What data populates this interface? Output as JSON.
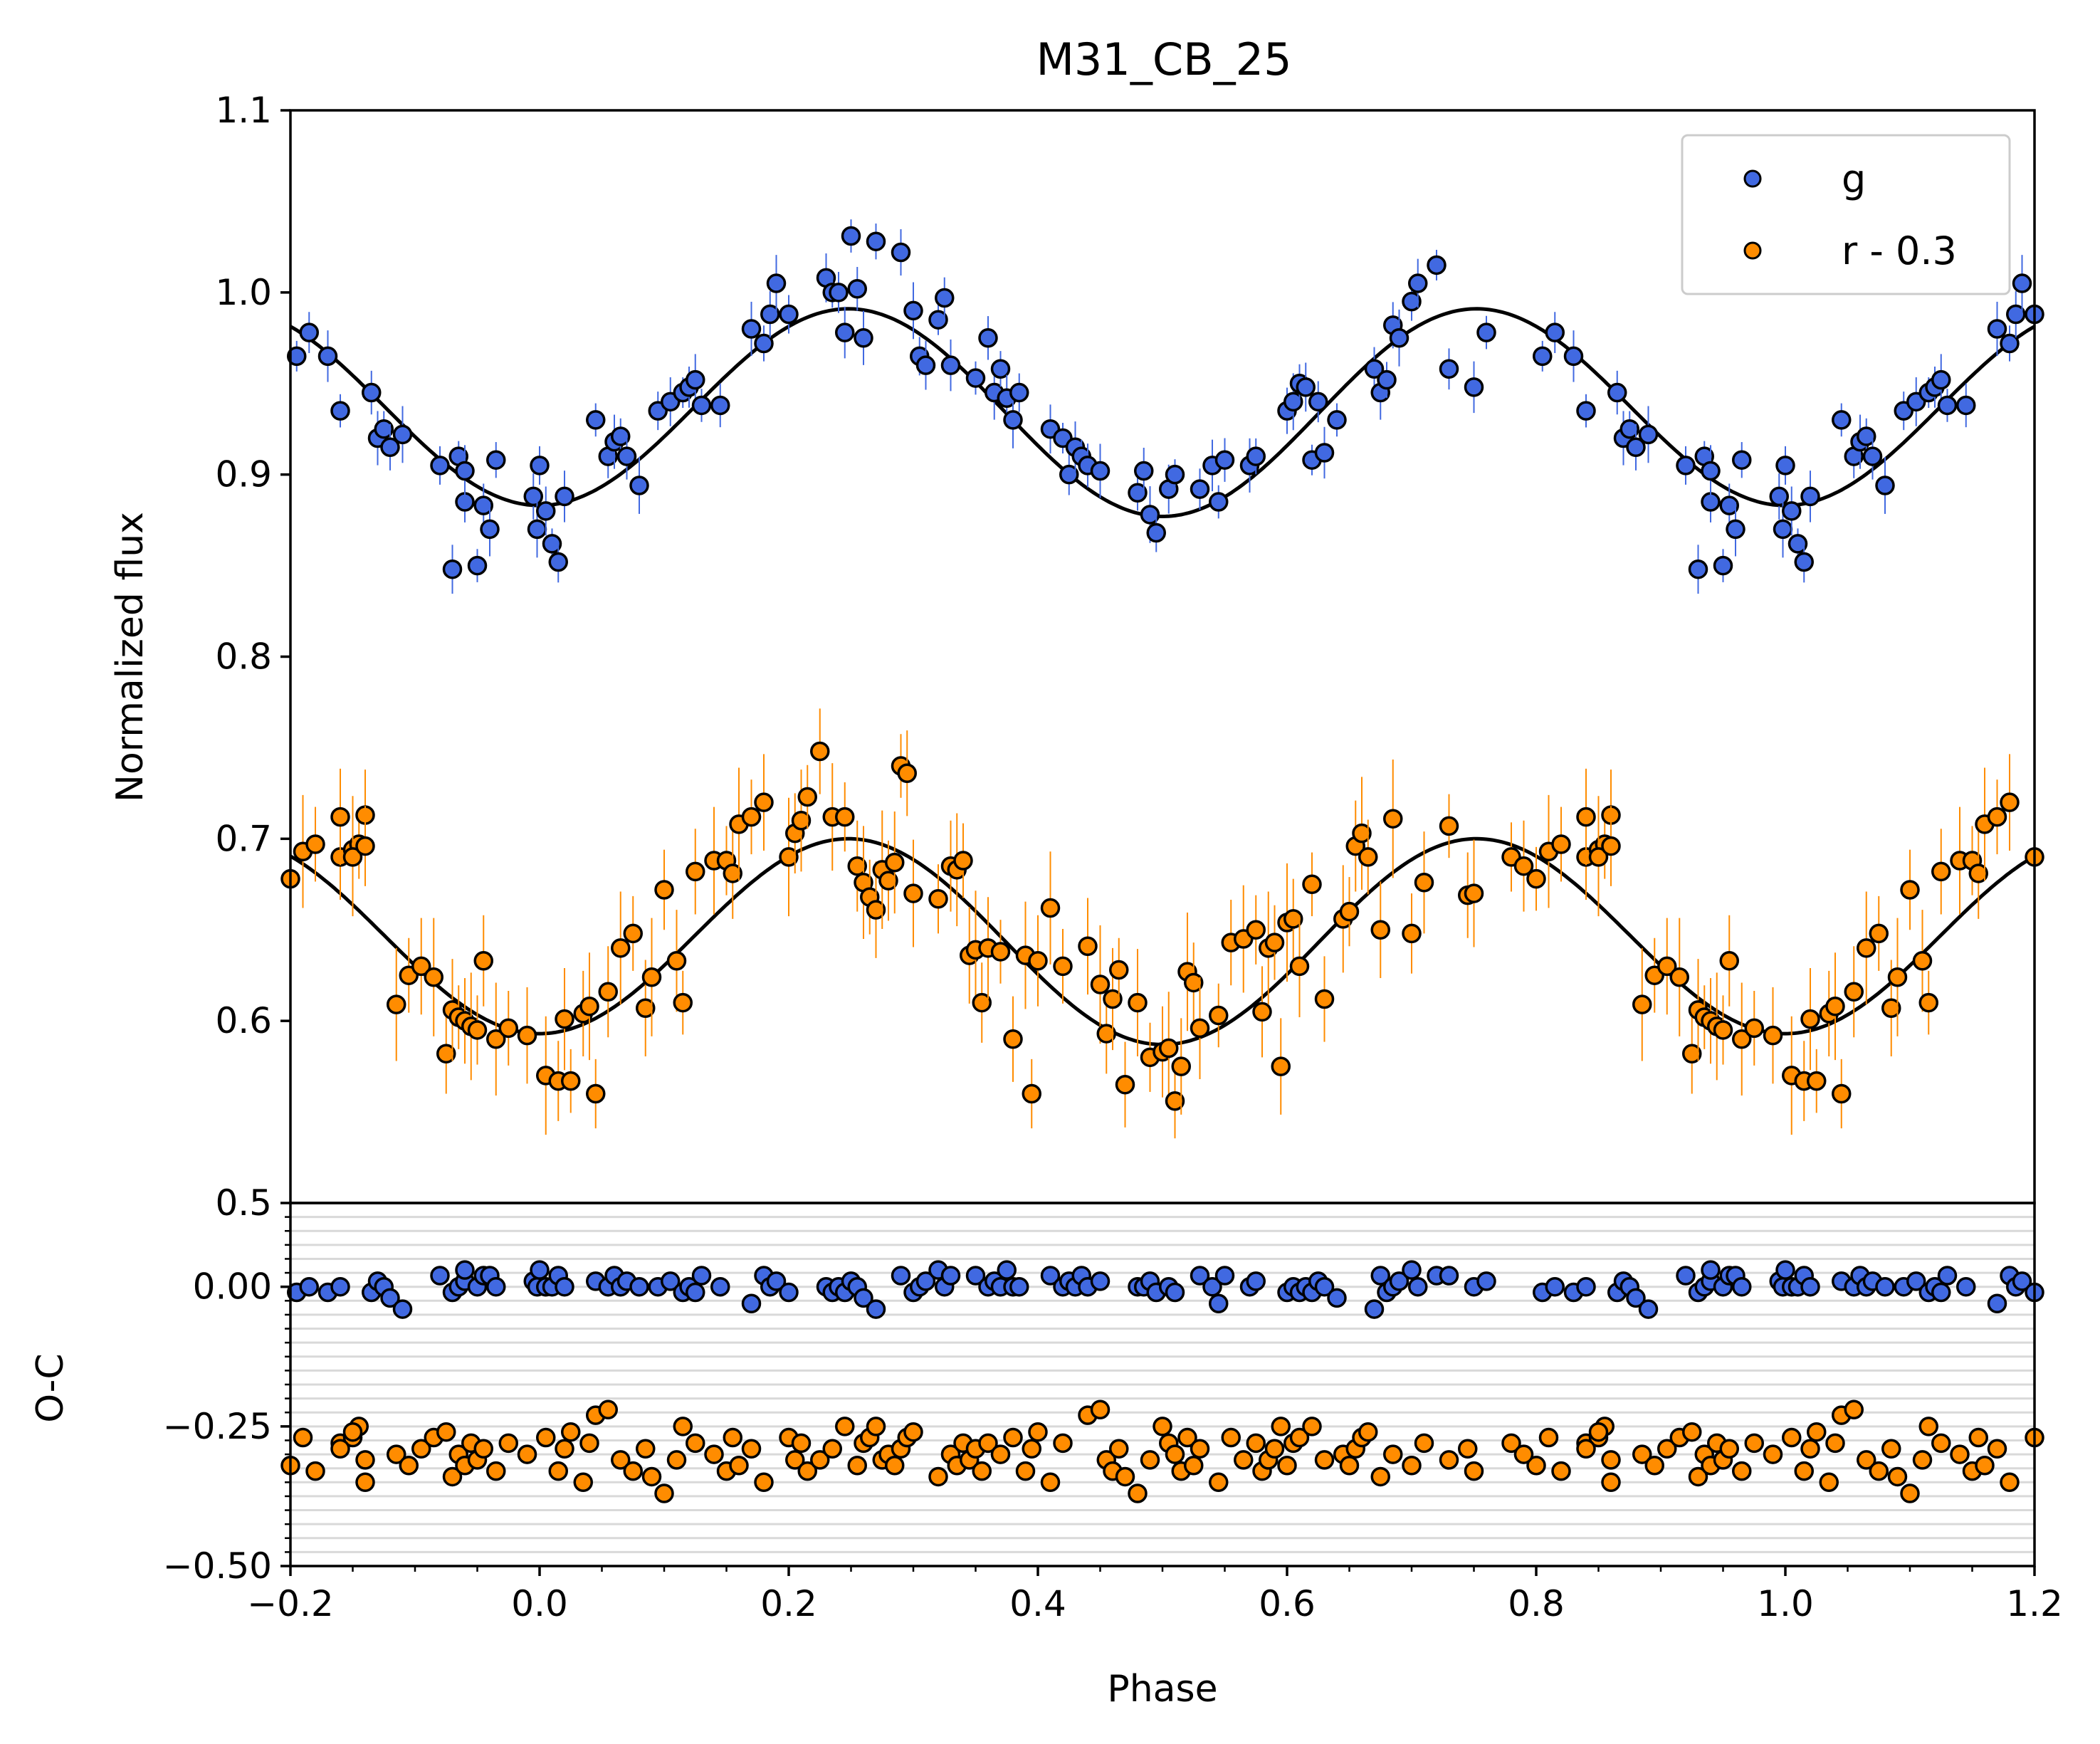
{
  "chart_data": [
    {
      "type": "scatter",
      "panel": "light-curve",
      "title": "M31_CB_25",
      "xlabel": "",
      "ylabel": "Normalized flux",
      "xlim": [
        -0.2,
        1.2
      ],
      "ylim": [
        0.5,
        1.1
      ],
      "xticks": [
        "",
        "",
        "",
        "",
        "",
        "",
        "",
        ""
      ],
      "yticks": [
        "0.5",
        "0.6",
        "0.7",
        "0.8",
        "0.9",
        "1.0",
        "1.1"
      ],
      "legend_position": "top-right",
      "grid": false,
      "series": [
        {
          "name": "g",
          "color": "#4169e1",
          "x": [
            -0.195,
            -0.185,
            -0.17,
            -0.16,
            -0.135,
            -0.13,
            -0.125,
            -0.12,
            -0.11,
            -0.08,
            -0.07,
            -0.065,
            -0.06,
            -0.06,
            -0.05,
            -0.045,
            -0.04,
            -0.035,
            -0.005,
            -0.002,
            0.0,
            0.005,
            0.01,
            0.015,
            0.02,
            0.045,
            0.055,
            0.06,
            0.065,
            0.07,
            0.08,
            0.095,
            0.105,
            0.115,
            0.12,
            0.125,
            0.13,
            0.145,
            0.17,
            0.18,
            0.185,
            0.19,
            0.2,
            0.23,
            0.235,
            0.24,
            0.245,
            0.25,
            0.255,
            0.26,
            0.27,
            0.29,
            0.3,
            0.305,
            0.31,
            0.32,
            0.325,
            0.33,
            0.35,
            0.36,
            0.365,
            0.37,
            0.375,
            0.38,
            0.385,
            0.41,
            0.42,
            0.425,
            0.43,
            0.435,
            0.44,
            0.45,
            0.48,
            0.485,
            0.49,
            0.495,
            0.505,
            0.51,
            0.53,
            0.54,
            0.545,
            0.55,
            0.57,
            0.575,
            0.6,
            0.605,
            0.61,
            0.615,
            0.62,
            0.625,
            0.63,
            0.64,
            0.67,
            0.675,
            0.68,
            0.685,
            0.69,
            0.7,
            0.705,
            0.72,
            0.73,
            0.75,
            0.76
          ],
          "values": [
            0.965,
            0.978,
            0.965,
            0.935,
            0.945,
            0.92,
            0.925,
            0.915,
            0.922,
            0.905,
            0.848,
            0.91,
            0.885,
            0.902,
            0.85,
            0.883,
            0.87,
            0.908,
            0.888,
            0.87,
            0.905,
            0.88,
            0.862,
            0.852,
            0.888,
            0.93,
            0.91,
            0.918,
            0.921,
            0.91,
            0.894,
            0.935,
            0.94,
            0.945,
            0.948,
            0.952,
            0.938,
            0.938,
            0.98,
            0.972,
            0.988,
            1.005,
            0.988,
            1.008,
            1.0,
            1.0,
            0.978,
            1.031,
            1.002,
            0.975,
            1.028,
            1.022,
            0.99,
            0.965,
            0.96,
            0.985,
            0.997,
            0.96,
            0.953,
            0.975,
            0.945,
            0.958,
            0.942,
            0.93,
            0.945,
            0.925,
            0.92,
            0.9,
            0.915,
            0.91,
            0.905,
            0.902,
            0.89,
            0.902,
            0.878,
            0.868,
            0.892,
            0.9,
            0.892,
            0.905,
            0.885,
            0.908,
            0.905,
            0.91,
            0.935,
            0.94,
            0.95,
            0.948,
            0.908,
            0.94,
            0.912,
            0.93,
            0.958,
            0.945,
            0.952,
            0.982,
            0.975,
            0.995,
            1.005,
            1.015,
            0.958,
            0.948,
            0.978
          ]
        },
        {
          "name": "r - 0.3",
          "color": "#ff8c00",
          "x": [
            -0.2,
            -0.16,
            -0.15,
            -0.145,
            -0.14,
            -0.115,
            -0.105,
            -0.095,
            -0.085,
            -0.075,
            -0.07,
            -0.065,
            -0.06,
            -0.055,
            -0.05,
            -0.045,
            -0.035,
            -0.025,
            -0.01,
            0.005,
            0.015,
            0.02,
            0.025,
            0.035,
            0.04,
            0.045,
            0.055,
            0.065,
            0.075,
            0.085,
            0.09,
            0.1,
            0.11,
            0.115,
            0.125,
            0.14,
            0.15,
            0.155,
            0.16,
            0.17,
            0.18,
            0.2,
            0.205,
            0.21,
            0.215,
            0.225,
            0.235,
            0.245,
            0.255,
            0.26,
            0.265,
            0.27,
            0.275,
            0.28,
            0.285,
            0.29,
            0.295,
            0.3,
            0.32,
            0.33,
            0.335,
            0.34,
            0.345,
            0.35,
            0.355,
            0.36,
            0.37,
            0.38,
            0.39,
            0.395,
            0.4,
            0.41,
            0.42,
            0.44,
            0.45,
            0.455,
            0.46,
            0.465,
            0.47,
            0.48,
            0.49,
            0.5,
            0.505,
            0.51,
            0.515,
            0.52,
            0.525,
            0.53,
            0.545,
            0.555,
            0.565,
            0.575,
            0.58,
            0.585,
            0.59,
            0.595,
            0.6,
            0.605,
            0.61,
            0.62,
            0.63,
            0.645,
            0.65,
            0.655,
            0.66,
            0.665,
            0.675,
            0.685,
            0.7,
            0.71,
            0.73,
            0.745,
            0.75,
            0.78,
            0.79,
            0.81,
            0.82,
            0.84,
            0.85,
            0.86
          ],
          "values": [
            0.678,
            0.69,
            0.694,
            0.697,
            0.713,
            0.609,
            0.625,
            0.63,
            0.624,
            0.582,
            0.606,
            0.602,
            0.6,
            0.597,
            0.595,
            0.633,
            0.59,
            0.596,
            0.592,
            0.57,
            0.567,
            0.601,
            0.567,
            0.604,
            0.608,
            0.56,
            0.616,
            0.64,
            0.648,
            0.607,
            0.624,
            0.672,
            0.633,
            0.61,
            0.682,
            0.688,
            0.688,
            0.681,
            0.708,
            0.712,
            0.72,
            0.69,
            0.703,
            0.71,
            0.723,
            0.748,
            0.712,
            0.712,
            0.685,
            0.676,
            0.668,
            0.661,
            0.683,
            0.677,
            0.687,
            0.74,
            0.736,
            0.67,
            0.667,
            0.685,
            0.683,
            0.688,
            0.636,
            0.639,
            0.61,
            0.64,
            0.638,
            0.59,
            0.636,
            0.56,
            0.633,
            0.662,
            0.63,
            0.641,
            0.62,
            0.593,
            0.612,
            0.628,
            0.565,
            0.61,
            0.58,
            0.583,
            0.585,
            0.556,
            0.575,
            0.627,
            0.621,
            0.596,
            0.603,
            0.643,
            0.645,
            0.65,
            0.605,
            0.64,
            0.643,
            0.575,
            0.654,
            0.656,
            0.63,
            0.675,
            0.612,
            0.656,
            0.66,
            0.696,
            0.703,
            0.69,
            0.65,
            0.711,
            0.648,
            0.676,
            0.707,
            0.669,
            0.67,
            0.69,
            0.685,
            0.693,
            0.697,
            0.712,
            0.69,
            0.696
          ]
        }
      ],
      "model_curves": [
        {
          "name": "",
          "color": "#000000",
          "mean": 0.9355,
          "amplitude": 0.0555,
          "note": "sinusoidal fit, minima at phase 0 and 0.5"
        },
        {
          "name": "",
          "color": "#000000",
          "mean": 0.645,
          "amplitude": 0.055,
          "note": "sinusoidal fit, minima at phase 0 and 0.5"
        }
      ]
    },
    {
      "type": "scatter",
      "panel": "residuals",
      "title": "",
      "xlabel": "Phase",
      "ylabel": "O-C",
      "xlim": [
        -0.2,
        1.2
      ],
      "ylim": [
        -0.5,
        0.15
      ],
      "xticks": [
        "−0.2",
        "0.0",
        "0.2",
        "0.4",
        "0.6",
        "0.8",
        "1.0",
        "1.2"
      ],
      "yticks": [
        "−0.50",
        "−0.25",
        "0.00"
      ],
      "grid": true,
      "series": [
        {
          "name": "g",
          "color": "#4169e1",
          "note": "residuals centered at 0.00, scatter about ±0.04",
          "values": [
            -0.01,
            0.0,
            -0.01,
            0.0,
            -0.01,
            0.01,
            0.0,
            -0.02,
            -0.04,
            0.02,
            -0.01,
            0.0,
            0.01,
            0.03,
            0.0,
            0.02,
            0.02,
            0.0,
            0.01,
            0.0,
            0.03,
            0.0,
            0.0,
            0.02,
            0.0,
            0.01,
            0.0,
            0.02,
            0.0,
            0.01,
            0.0,
            0.0,
            0.01,
            -0.01,
            0.0,
            -0.01,
            0.02,
            0.0,
            -0.03,
            0.02,
            0.0,
            0.01
          ]
        },
        {
          "name": "r - 0.3",
          "color": "#ff8c00",
          "note": "residuals centered at −0.30, scatter about ±0.06",
          "values": [
            -0.32,
            -0.28,
            -0.27,
            -0.25,
            -0.31,
            -0.3,
            -0.32,
            -0.29,
            -0.27,
            -0.26,
            -0.34,
            -0.3,
            -0.32,
            -0.28,
            -0.31,
            -0.29,
            -0.33,
            -0.28,
            -0.3,
            -0.27,
            -0.33,
            -0.29,
            -0.26,
            -0.35,
            -0.28,
            -0.23,
            -0.22,
            -0.31,
            -0.33,
            -0.29,
            -0.34,
            -0.37,
            -0.31,
            -0.25,
            -0.28,
            -0.3,
            -0.33,
            -0.27,
            -0.32,
            -0.29,
            -0.35,
            -0.27,
            -0.31,
            -0.28,
            -0.33,
            -0.31,
            -0.29,
            -0.25
          ]
        }
      ]
    }
  ]
}
